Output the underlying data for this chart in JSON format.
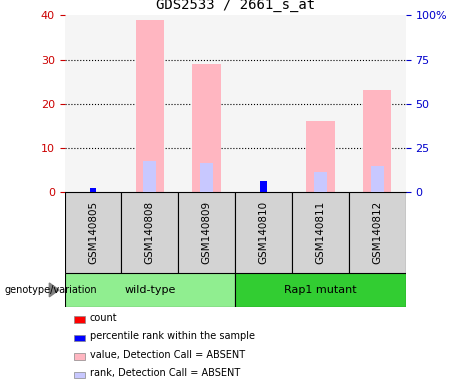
{
  "title": "GDS2533 / 2661_s_at",
  "samples": [
    "GSM140805",
    "GSM140808",
    "GSM140809",
    "GSM140810",
    "GSM140811",
    "GSM140812"
  ],
  "left_ylim": [
    0,
    40
  ],
  "left_yticks": [
    0,
    10,
    20,
    30,
    40
  ],
  "right_ylim": [
    0,
    100
  ],
  "right_yticks": [
    0,
    25,
    50,
    75,
    100
  ],
  "right_yticklabels": [
    "0",
    "25",
    "50",
    "75",
    "100%"
  ],
  "pink_values": [
    0,
    39,
    29,
    0,
    16,
    23
  ],
  "pink_color": "#ffb6c1",
  "rank_absent_values": [
    0,
    7,
    6.5,
    0,
    4.5,
    6
  ],
  "rank_absent_color": "#c8c8ff",
  "red_values": [
    0,
    0,
    0,
    2.5,
    0,
    0
  ],
  "red_color": "#ff0000",
  "blue_values": [
    1,
    0,
    0,
    2.5,
    0,
    0
  ],
  "blue_color": "#0000ff",
  "legend_items": [
    {
      "label": "count",
      "color": "#ff0000"
    },
    {
      "label": "percentile rank within the sample",
      "color": "#0000ff"
    },
    {
      "label": "value, Detection Call = ABSENT",
      "color": "#ffb6c1"
    },
    {
      "label": "rank, Detection Call = ABSENT",
      "color": "#c8c8ff"
    }
  ],
  "left_tick_color": "#cc0000",
  "right_tick_color": "#0000cc",
  "genotype_label": "genotype/variation",
  "background_color": "#ffffff",
  "plot_bg_color": "#f5f5f5",
  "sample_bg_color": "#d3d3d3",
  "group_wt_color": "#90ee90",
  "group_rap_color": "#32cd32",
  "group_positions": [
    {
      "name": "wild-type",
      "start": 0,
      "end": 2,
      "color": "#90ee90"
    },
    {
      "name": "Rap1 mutant",
      "start": 3,
      "end": 5,
      "color": "#32cd32"
    }
  ]
}
